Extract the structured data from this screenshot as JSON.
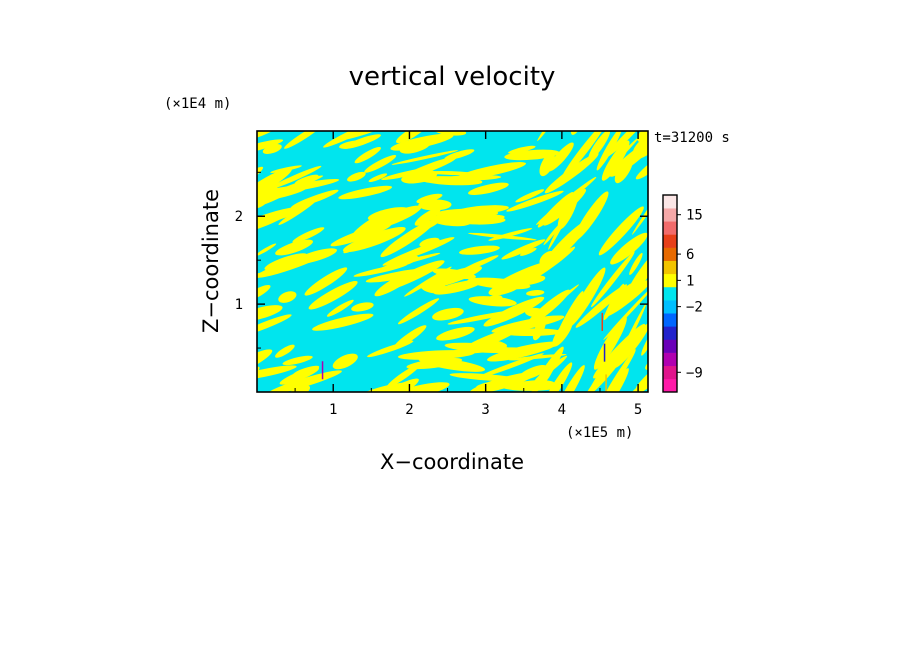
{
  "chart_data": {
    "type": "heatmap",
    "title": "vertical velocity",
    "xlabel": "X−coordinate",
    "ylabel": "Z−coordinate",
    "x_unit": "(×1E5 m)",
    "y_unit": "(×1E4 m)",
    "time_label": "t=31200 s",
    "xlim": [
      0,
      5.13
    ],
    "ylim": [
      0,
      2.97
    ],
    "x_ticks": [
      "1",
      "2",
      "3",
      "4",
      "5"
    ],
    "y_ticks": [
      "1",
      "2"
    ],
    "dominant_field_colors": {
      "positive": "#ffff00",
      "negative": "#00e5ee"
    },
    "colorbar": {
      "levels": [
        {
          "color": "#ff1aa8"
        },
        {
          "color": "#e0148c"
        },
        {
          "color": "#b000b0"
        },
        {
          "color": "#6a00b8"
        },
        {
          "color": "#2222cc"
        },
        {
          "color": "#0066ff"
        },
        {
          "color": "#00bfff"
        },
        {
          "color": "#00e5ee"
        },
        {
          "color": "#ffff00"
        },
        {
          "color": "#f2c400"
        },
        {
          "color": "#e86a00"
        },
        {
          "color": "#e8401a"
        },
        {
          "color": "#f26b6b"
        },
        {
          "color": "#f5a8a8"
        },
        {
          "color": "#fbe6e6"
        }
      ],
      "tick_labels": [
        "−9",
        "−2",
        "1",
        "6",
        "15"
      ]
    }
  }
}
